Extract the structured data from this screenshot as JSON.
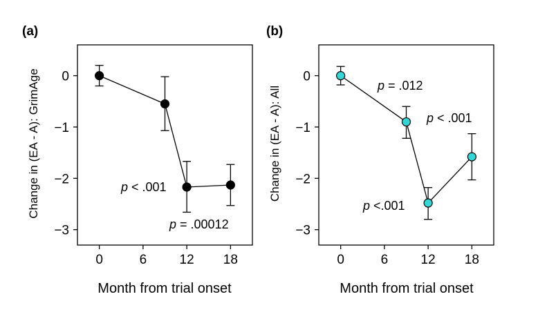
{
  "chart_data": [
    {
      "type": "line",
      "panel_label": "(a)",
      "title": "",
      "xlabel": "Month from trial onset",
      "ylabel": "Change in (EA - A):  GrimAge",
      "x_ticks": [
        "0",
        "6",
        "12",
        "18"
      ],
      "y_ticks": [
        "0",
        "−1",
        "−2",
        "−3"
      ],
      "xlim": [
        -3,
        21
      ],
      "ylim": [
        -3.3,
        0.6
      ],
      "marker_color": "#000000",
      "series": [
        {
          "x": [
            0,
            9,
            12,
            18
          ],
          "y": [
            0,
            -0.55,
            -2.17,
            -2.13
          ],
          "err_low": [
            -0.2,
            -1.07,
            -2.66,
            -2.53
          ],
          "err_high": [
            0.2,
            -0.02,
            -1.67,
            -1.73
          ]
        }
      ],
      "annotations": [
        {
          "p": "p",
          "text": " < .001"
        },
        {
          "p": "p",
          "text": " = .00012"
        }
      ]
    },
    {
      "type": "line",
      "panel_label": "(b)",
      "title": "",
      "xlabel": "Month from trial onset",
      "ylabel": "Change in (EA - A):  All",
      "x_ticks": [
        "0",
        "6",
        "12",
        "18"
      ],
      "y_ticks": [
        "0",
        "−1",
        "−2",
        "−3"
      ],
      "xlim": [
        -3,
        21
      ],
      "ylim": [
        -3.3,
        0.6
      ],
      "marker_color": "#33d6d6",
      "series": [
        {
          "x": [
            0,
            9,
            12,
            18
          ],
          "y": [
            0,
            -0.9,
            -2.48,
            -1.58
          ],
          "err_low": [
            -0.18,
            -1.22,
            -2.8,
            -2.03
          ],
          "err_high": [
            0.18,
            -0.6,
            -2.18,
            -1.13
          ]
        }
      ],
      "annotations": [
        {
          "p": "p",
          "text": " = .012"
        },
        {
          "p": "p",
          "text": " < .001"
        },
        {
          "p": "p",
          "text": " <.001"
        }
      ]
    }
  ]
}
